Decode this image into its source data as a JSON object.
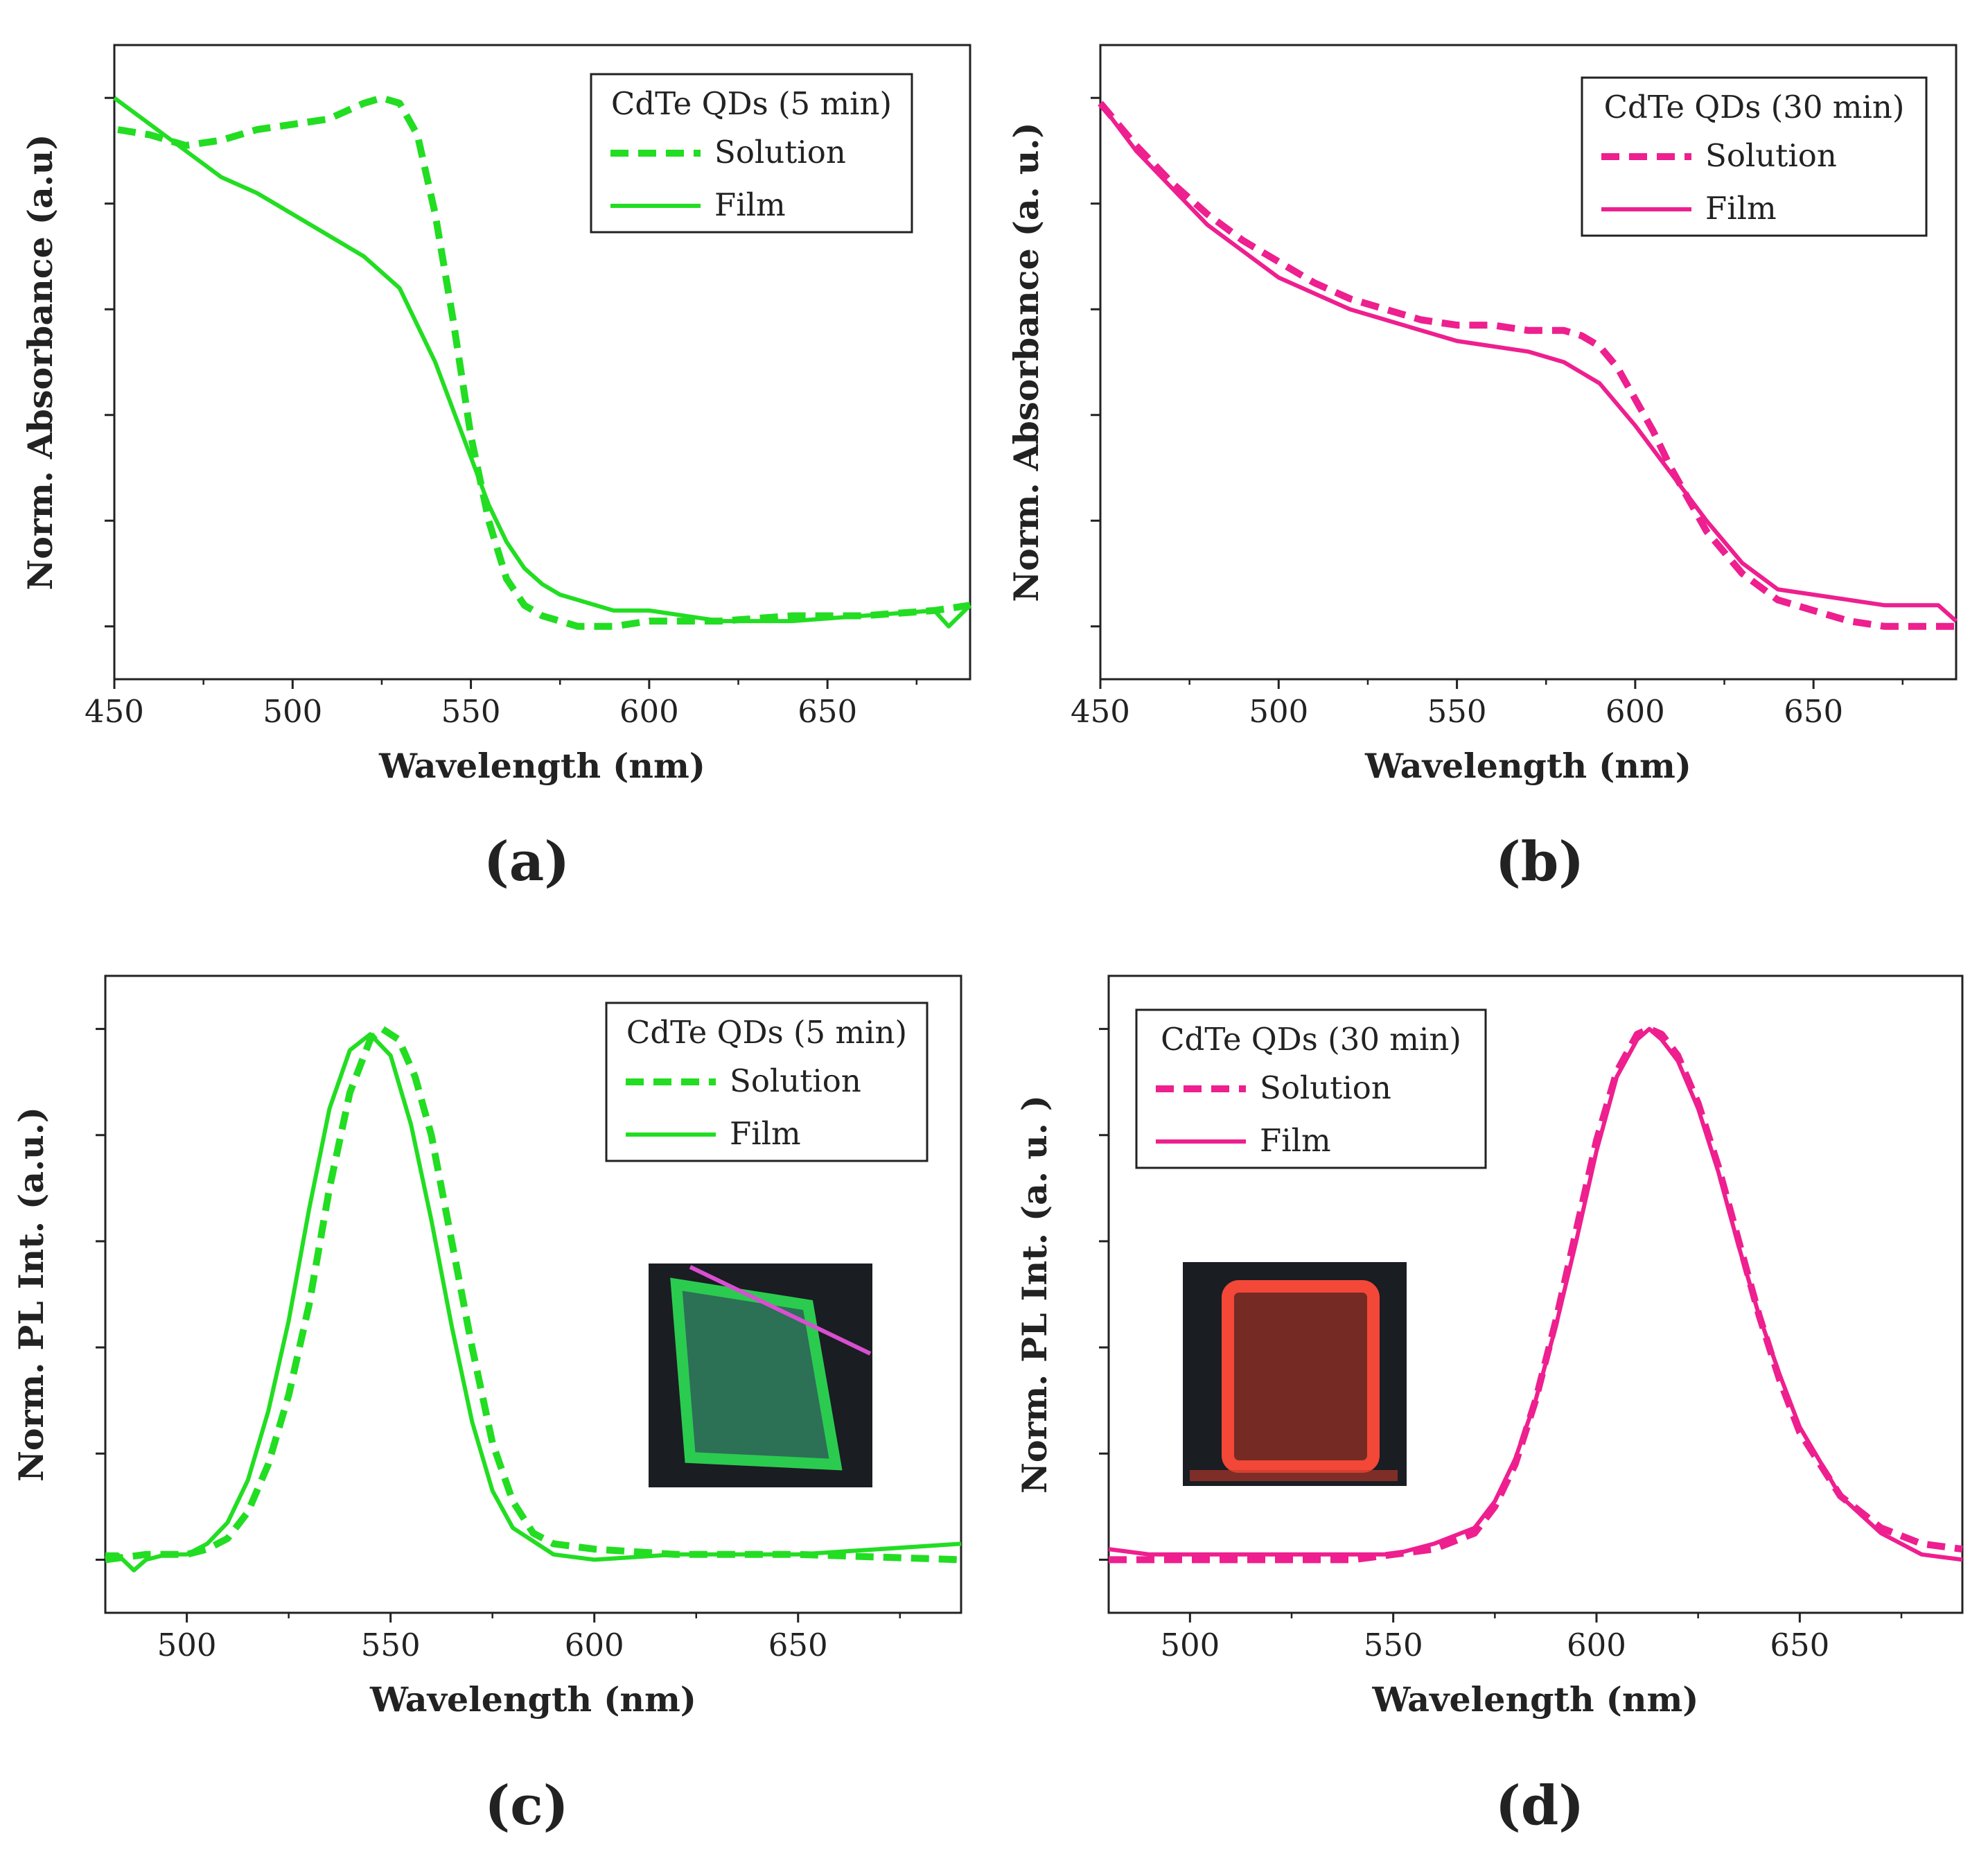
{
  "chart_data": [
    {
      "id": "a",
      "type": "line",
      "panel_label": "(a)",
      "xlabel": "Wavelength (nm)",
      "ylabel": "Norm. Absorbance (a.u)",
      "xlim": [
        450,
        690
      ],
      "ylim": [
        -0.1,
        1.1
      ],
      "xticks": [
        450,
        500,
        550,
        600,
        650
      ],
      "xtick_labels": [
        "450",
        "500",
        "550",
        "600",
        "650"
      ],
      "yticks": [
        0,
        0.2,
        0.4,
        0.6,
        0.8,
        1.0
      ],
      "legend": {
        "title": "CdTe QDs (5 min)",
        "position": "top-right"
      },
      "color": "#22dd22",
      "series": [
        {
          "name": "Solution",
          "style": "dashed",
          "x": [
            451,
            460,
            470,
            480,
            490,
            500,
            510,
            520,
            525,
            530,
            535,
            540,
            545,
            550,
            555,
            560,
            565,
            570,
            575,
            580,
            590,
            600,
            620,
            640,
            660,
            680,
            690
          ],
          "y": [
            0.94,
            0.93,
            0.91,
            0.92,
            0.94,
            0.95,
            0.96,
            0.99,
            1.0,
            0.99,
            0.93,
            0.78,
            0.58,
            0.36,
            0.2,
            0.09,
            0.04,
            0.02,
            0.01,
            0.0,
            0.0,
            0.01,
            0.01,
            0.02,
            0.02,
            0.03,
            0.04
          ]
        },
        {
          "name": "Film",
          "style": "solid",
          "x": [
            450,
            460,
            470,
            480,
            490,
            500,
            510,
            520,
            530,
            540,
            550,
            555,
            560,
            565,
            570,
            575,
            580,
            590,
            600,
            620,
            640,
            660,
            680,
            684,
            690
          ],
          "y": [
            1.0,
            0.95,
            0.9,
            0.85,
            0.82,
            0.78,
            0.74,
            0.7,
            0.64,
            0.5,
            0.32,
            0.23,
            0.16,
            0.11,
            0.08,
            0.06,
            0.05,
            0.03,
            0.03,
            0.01,
            0.01,
            0.02,
            0.03,
            0.0,
            0.04
          ]
        }
      ]
    },
    {
      "id": "b",
      "type": "line",
      "panel_label": "(b)",
      "xlabel": "Wavelength (nm)",
      "ylabel": "Norm. Absorbance (a. u.)",
      "xlim": [
        450,
        690
      ],
      "ylim": [
        -0.1,
        1.1
      ],
      "xticks": [
        450,
        500,
        550,
        600,
        650
      ],
      "xtick_labels": [
        "450",
        "500",
        "550",
        "600",
        "650"
      ],
      "yticks": [
        0,
        0.2,
        0.4,
        0.6,
        0.8,
        1.0
      ],
      "legend": {
        "title": "CdTe QDs (30 min)",
        "position": "top-right"
      },
      "color": "#ee1f8f",
      "series": [
        {
          "name": "Solution",
          "style": "dashed",
          "x": [
            450,
            460,
            470,
            480,
            490,
            500,
            510,
            520,
            530,
            540,
            550,
            560,
            570,
            580,
            585,
            590,
            595,
            600,
            605,
            610,
            620,
            630,
            640,
            650,
            660,
            670,
            680,
            690
          ],
          "y": [
            0.99,
            0.91,
            0.84,
            0.78,
            0.73,
            0.69,
            0.65,
            0.62,
            0.6,
            0.58,
            0.57,
            0.57,
            0.56,
            0.56,
            0.55,
            0.53,
            0.49,
            0.43,
            0.37,
            0.3,
            0.18,
            0.1,
            0.05,
            0.03,
            0.01,
            0.0,
            0.0,
            0.0
          ]
        },
        {
          "name": "Film",
          "style": "solid",
          "x": [
            450,
            460,
            470,
            480,
            490,
            500,
            510,
            520,
            530,
            540,
            550,
            560,
            570,
            580,
            590,
            600,
            610,
            620,
            630,
            640,
            650,
            660,
            670,
            680,
            685,
            690
          ],
          "y": [
            0.99,
            0.9,
            0.83,
            0.76,
            0.71,
            0.66,
            0.63,
            0.6,
            0.58,
            0.56,
            0.54,
            0.53,
            0.52,
            0.5,
            0.46,
            0.38,
            0.29,
            0.2,
            0.12,
            0.07,
            0.06,
            0.05,
            0.04,
            0.04,
            0.04,
            0.01
          ]
        }
      ]
    },
    {
      "id": "c",
      "type": "line",
      "panel_label": "(c)",
      "xlabel": "Wavelength (nm)",
      "ylabel": "Norm. PL Int. (a.u.)",
      "xlim": [
        480,
        690
      ],
      "ylim": [
        -0.1,
        1.1
      ],
      "xticks": [
        500,
        550,
        600,
        650
      ],
      "xtick_labels": [
        "500",
        "550",
        "600",
        "650"
      ],
      "yticks": [
        0,
        0.2,
        0.4,
        0.6,
        0.8,
        1.0
      ],
      "legend": {
        "title": "CdTe QDs (5 min)",
        "position": "top-right"
      },
      "inset": {
        "description": "green glowing film photo",
        "position": "right"
      },
      "color": "#22dd22",
      "series": [
        {
          "name": "Solution",
          "style": "dashed",
          "x": [
            480,
            490,
            500,
            505,
            510,
            515,
            520,
            525,
            530,
            535,
            540,
            545,
            548,
            552,
            556,
            560,
            565,
            570,
            575,
            580,
            585,
            590,
            600,
            620,
            650,
            690
          ],
          "y": [
            0.0,
            0.01,
            0.01,
            0.02,
            0.04,
            0.09,
            0.18,
            0.31,
            0.48,
            0.7,
            0.88,
            0.98,
            1.0,
            0.98,
            0.91,
            0.8,
            0.6,
            0.4,
            0.22,
            0.11,
            0.05,
            0.03,
            0.02,
            0.01,
            0.01,
            0.0
          ]
        },
        {
          "name": "Film",
          "style": "solid",
          "x": [
            480,
            483,
            487,
            490,
            495,
            500,
            505,
            510,
            515,
            520,
            525,
            530,
            535,
            540,
            545,
            550,
            555,
            560,
            565,
            570,
            575,
            580,
            590,
            600,
            620,
            650,
            670,
            690
          ],
          "y": [
            0.01,
            0.01,
            -0.02,
            0.0,
            0.01,
            0.01,
            0.03,
            0.07,
            0.15,
            0.28,
            0.45,
            0.66,
            0.85,
            0.96,
            0.99,
            0.95,
            0.82,
            0.64,
            0.44,
            0.26,
            0.13,
            0.06,
            0.01,
            0.0,
            0.01,
            0.01,
            0.02,
            0.03
          ]
        }
      ]
    },
    {
      "id": "d",
      "type": "line",
      "panel_label": "(d)",
      "xlabel": "Wavelength (nm)",
      "ylabel": "Norm. PL Int. (a. u. )",
      "xlim": [
        480,
        690
      ],
      "ylim": [
        -0.1,
        1.1
      ],
      "xticks": [
        500,
        550,
        600,
        650
      ],
      "xtick_labels": [
        "500",
        "550",
        "600",
        "650"
      ],
      "yticks": [
        0,
        0.2,
        0.4,
        0.6,
        0.8,
        1.0
      ],
      "legend": {
        "title": "CdTe QDs (30 min)",
        "position": "top-left"
      },
      "inset": {
        "description": "red glowing film photo",
        "position": "left"
      },
      "color": "#ee1f8f",
      "series": [
        {
          "name": "Solution",
          "style": "dashed",
          "x": [
            480,
            500,
            520,
            540,
            550,
            560,
            570,
            575,
            580,
            585,
            590,
            595,
            600,
            605,
            610,
            613,
            616,
            620,
            625,
            630,
            635,
            640,
            645,
            650,
            660,
            670,
            680,
            690
          ],
          "y": [
            0.0,
            0.0,
            0.0,
            0.0,
            0.01,
            0.02,
            0.05,
            0.1,
            0.18,
            0.3,
            0.45,
            0.62,
            0.79,
            0.92,
            0.99,
            1.0,
            0.99,
            0.95,
            0.86,
            0.74,
            0.6,
            0.46,
            0.34,
            0.24,
            0.12,
            0.06,
            0.03,
            0.02
          ]
        },
        {
          "name": "Film",
          "style": "solid",
          "x": [
            480,
            490,
            500,
            520,
            540,
            550,
            560,
            570,
            575,
            580,
            585,
            590,
            595,
            600,
            605,
            610,
            613,
            616,
            620,
            625,
            630,
            635,
            640,
            645,
            650,
            660,
            670,
            680,
            690
          ],
          "y": [
            0.02,
            0.01,
            0.01,
            0.01,
            0.01,
            0.01,
            0.03,
            0.06,
            0.11,
            0.19,
            0.3,
            0.44,
            0.6,
            0.77,
            0.91,
            0.98,
            1.0,
            0.98,
            0.94,
            0.85,
            0.73,
            0.59,
            0.46,
            0.35,
            0.25,
            0.12,
            0.05,
            0.01,
            0.0
          ]
        }
      ]
    }
  ]
}
